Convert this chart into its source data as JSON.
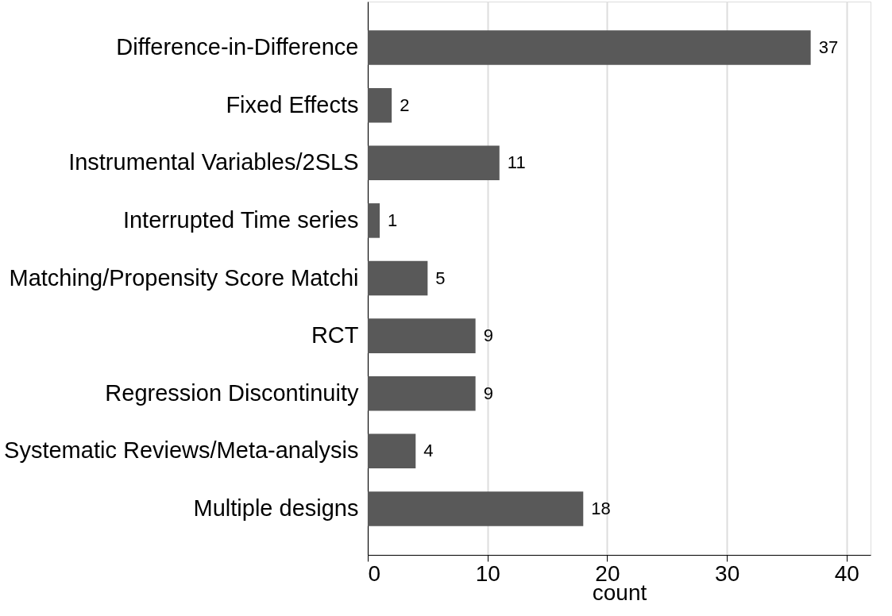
{
  "chart_data": {
    "type": "bar",
    "orientation": "horizontal",
    "xlabel": "count",
    "categories": [
      "Difference-in-Difference",
      "Fixed Effects",
      "Instrumental Variables/2SLS",
      "Interrupted Time series",
      "Matching/Propensity Score Matchi",
      "RCT",
      "Regression Discontinuity",
      "Systematic Reviews/Meta-analysis",
      "Multiple designs"
    ],
    "values": [
      37,
      2,
      11,
      1,
      5,
      9,
      9,
      4,
      18
    ],
    "color": "#595959",
    "xlim": [
      0,
      42
    ],
    "xticks": [
      0,
      10,
      20,
      30,
      40
    ],
    "grid": "x",
    "data_labels": true
  }
}
